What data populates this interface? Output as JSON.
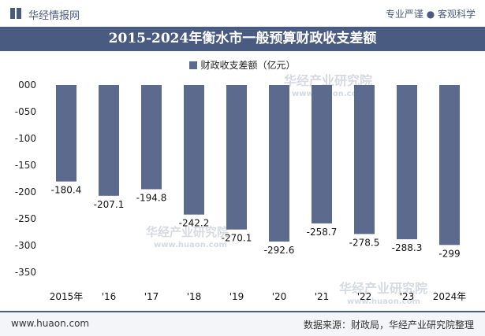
{
  "header": {
    "brand": "华经情报网",
    "tagline": "专业严谨 ● 客观科学"
  },
  "watermark": {
    "text": "华经产业研究院",
    "url": "www.huaon.com"
  },
  "footer": {
    "site": "www.huaon.com",
    "source": "数据来源：财政局，华经产业研究院整理"
  },
  "colors": {
    "header": "#4a5b82",
    "bar": "#5c6b8d"
  },
  "chart_data": {
    "type": "bar",
    "title": "2015-2024年衡水市一般预算财政收支差额",
    "legend_position": "top",
    "categories": [
      "2015年",
      "'16",
      "'17",
      "'18",
      "'19",
      "'20",
      "'21",
      "'22",
      "'23",
      "2024年"
    ],
    "series": [
      {
        "name": "财政收支差额（亿元）",
        "values": [
          -180.4,
          -207.1,
          -194.8,
          -242.2,
          -270.1,
          -292.6,
          -258.7,
          -278.5,
          -288.3,
          -299
        ],
        "labels": [
          "-180.4",
          "-207.1",
          "-194.8",
          "-242.2",
          "-270.1",
          "-292.6",
          "-258.7",
          "-278.5",
          "-288.3",
          "-299"
        ]
      }
    ],
    "ylim": [
      -350,
      0
    ],
    "yticks": [
      0,
      -50,
      -100,
      -150,
      -200,
      -250,
      -300,
      -350
    ],
    "ytick_labels": [
      "000",
      "-050",
      "-100",
      "-150",
      "-200",
      "-250",
      "-300",
      "-350"
    ],
    "grid": false
  }
}
